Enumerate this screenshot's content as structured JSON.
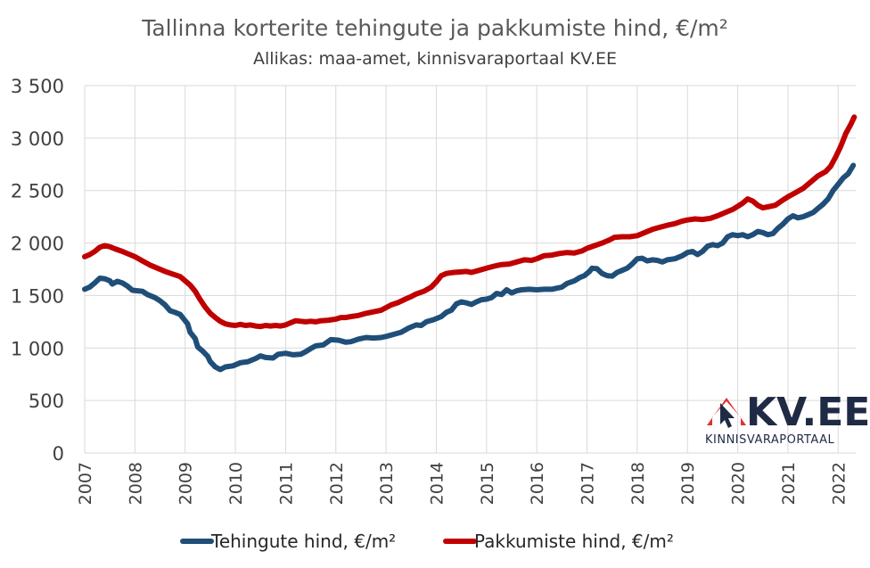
{
  "chart_data": {
    "type": "line",
    "title": "Tallinna korterite tehingute ja pakkumiste hind, €/m²",
    "subtitle": "Allikas: maa-amet, kinnisvaraportaal KV.EE",
    "ylim": [
      0,
      3500
    ],
    "yticks": [
      0,
      500,
      1000,
      1500,
      2000,
      2500,
      3000,
      3500
    ],
    "ytick_labels": [
      "0",
      "500",
      "1 000",
      "1 500",
      "2 000",
      "2 500",
      "3 000",
      "3 500"
    ],
    "xlim": [
      2007,
      2022.35
    ],
    "xticks": [
      2007,
      2008,
      2009,
      2010,
      2011,
      2012,
      2013,
      2014,
      2015,
      2016,
      2017,
      2018,
      2019,
      2020,
      2021,
      2022
    ],
    "xtick_labels": [
      "2007",
      "2008",
      "2009",
      "2010",
      "2011",
      "2012",
      "2013",
      "2014",
      "2015",
      "2016",
      "2017",
      "2018",
      "2019",
      "2020",
      "2021",
      "2022"
    ],
    "grid": true,
    "legend_position": "bottom",
    "series": [
      {
        "name": "Tehingute hind, €/m²",
        "color": "#1f4e79",
        "points": [
          [
            2007.0,
            1560
          ],
          [
            2007.1,
            1580
          ],
          [
            2007.2,
            1620
          ],
          [
            2007.3,
            1665
          ],
          [
            2007.4,
            1660
          ],
          [
            2007.5,
            1640
          ],
          [
            2007.55,
            1610
          ],
          [
            2007.65,
            1635
          ],
          [
            2007.75,
            1620
          ],
          [
            2007.85,
            1590
          ],
          [
            2007.95,
            1550
          ],
          [
            2008.05,
            1545
          ],
          [
            2008.15,
            1540
          ],
          [
            2008.25,
            1510
          ],
          [
            2008.4,
            1480
          ],
          [
            2008.5,
            1450
          ],
          [
            2008.6,
            1410
          ],
          [
            2008.7,
            1355
          ],
          [
            2008.8,
            1340
          ],
          [
            2008.9,
            1320
          ],
          [
            2009.0,
            1260
          ],
          [
            2009.05,
            1230
          ],
          [
            2009.1,
            1150
          ],
          [
            2009.2,
            1090
          ],
          [
            2009.25,
            1010
          ],
          [
            2009.35,
            970
          ],
          [
            2009.45,
            920
          ],
          [
            2009.5,
            870
          ],
          [
            2009.6,
            820
          ],
          [
            2009.7,
            795
          ],
          [
            2009.8,
            820
          ],
          [
            2009.95,
            830
          ],
          [
            2010.1,
            860
          ],
          [
            2010.25,
            870
          ],
          [
            2010.4,
            900
          ],
          [
            2010.5,
            925
          ],
          [
            2010.6,
            910
          ],
          [
            2010.75,
            905
          ],
          [
            2010.85,
            940
          ],
          [
            2011.0,
            950
          ],
          [
            2011.15,
            935
          ],
          [
            2011.3,
            940
          ],
          [
            2011.4,
            965
          ],
          [
            2011.5,
            995
          ],
          [
            2011.6,
            1020
          ],
          [
            2011.75,
            1030
          ],
          [
            2011.9,
            1080
          ],
          [
            2012.05,
            1075
          ],
          [
            2012.2,
            1055
          ],
          [
            2012.3,
            1060
          ],
          [
            2012.45,
            1085
          ],
          [
            2012.6,
            1100
          ],
          [
            2012.75,
            1095
          ],
          [
            2012.9,
            1100
          ],
          [
            2013.0,
            1110
          ],
          [
            2013.15,
            1130
          ],
          [
            2013.3,
            1150
          ],
          [
            2013.45,
            1190
          ],
          [
            2013.6,
            1220
          ],
          [
            2013.7,
            1215
          ],
          [
            2013.8,
            1250
          ],
          [
            2013.95,
            1270
          ],
          [
            2014.1,
            1300
          ],
          [
            2014.2,
            1340
          ],
          [
            2014.3,
            1360
          ],
          [
            2014.4,
            1420
          ],
          [
            2014.5,
            1440
          ],
          [
            2014.6,
            1430
          ],
          [
            2014.7,
            1415
          ],
          [
            2014.8,
            1440
          ],
          [
            2014.9,
            1460
          ],
          [
            2015.0,
            1465
          ],
          [
            2015.1,
            1480
          ],
          [
            2015.2,
            1520
          ],
          [
            2015.3,
            1510
          ],
          [
            2015.4,
            1555
          ],
          [
            2015.5,
            1525
          ],
          [
            2015.6,
            1545
          ],
          [
            2015.7,
            1555
          ],
          [
            2015.85,
            1560
          ],
          [
            2016.0,
            1555
          ],
          [
            2016.15,
            1560
          ],
          [
            2016.3,
            1560
          ],
          [
            2016.4,
            1570
          ],
          [
            2016.5,
            1580
          ],
          [
            2016.6,
            1615
          ],
          [
            2016.75,
            1640
          ],
          [
            2016.85,
            1670
          ],
          [
            2016.95,
            1690
          ],
          [
            2017.05,
            1730
          ],
          [
            2017.1,
            1760
          ],
          [
            2017.2,
            1755
          ],
          [
            2017.3,
            1710
          ],
          [
            2017.4,
            1690
          ],
          [
            2017.5,
            1685
          ],
          [
            2017.6,
            1720
          ],
          [
            2017.7,
            1740
          ],
          [
            2017.8,
            1760
          ],
          [
            2017.9,
            1800
          ],
          [
            2018.0,
            1850
          ],
          [
            2018.1,
            1855
          ],
          [
            2018.2,
            1830
          ],
          [
            2018.3,
            1840
          ],
          [
            2018.4,
            1835
          ],
          [
            2018.5,
            1820
          ],
          [
            2018.6,
            1840
          ],
          [
            2018.75,
            1850
          ],
          [
            2018.9,
            1880
          ],
          [
            2019.0,
            1910
          ],
          [
            2019.1,
            1920
          ],
          [
            2019.2,
            1890
          ],
          [
            2019.3,
            1920
          ],
          [
            2019.4,
            1970
          ],
          [
            2019.5,
            1985
          ],
          [
            2019.6,
            1975
          ],
          [
            2019.7,
            2000
          ],
          [
            2019.8,
            2060
          ],
          [
            2019.9,
            2080
          ],
          [
            2020.0,
            2070
          ],
          [
            2020.1,
            2080
          ],
          [
            2020.2,
            2060
          ],
          [
            2020.3,
            2080
          ],
          [
            2020.4,
            2110
          ],
          [
            2020.5,
            2100
          ],
          [
            2020.6,
            2080
          ],
          [
            2020.7,
            2090
          ],
          [
            2020.8,
            2140
          ],
          [
            2020.9,
            2180
          ],
          [
            2021.0,
            2230
          ],
          [
            2021.1,
            2260
          ],
          [
            2021.2,
            2240
          ],
          [
            2021.3,
            2250
          ],
          [
            2021.4,
            2270
          ],
          [
            2021.5,
            2290
          ],
          [
            2021.6,
            2330
          ],
          [
            2021.7,
            2370
          ],
          [
            2021.8,
            2420
          ],
          [
            2021.9,
            2500
          ],
          [
            2022.0,
            2560
          ],
          [
            2022.1,
            2620
          ],
          [
            2022.2,
            2660
          ],
          [
            2022.3,
            2740
          ]
        ]
      },
      {
        "name": "Pakkumiste hind, €/m²",
        "color": "#c00000",
        "points": [
          [
            2007.0,
            1870
          ],
          [
            2007.1,
            1890
          ],
          [
            2007.2,
            1920
          ],
          [
            2007.3,
            1960
          ],
          [
            2007.4,
            1975
          ],
          [
            2007.5,
            1965
          ],
          [
            2007.6,
            1945
          ],
          [
            2007.75,
            1920
          ],
          [
            2007.9,
            1890
          ],
          [
            2008.0,
            1870
          ],
          [
            2008.15,
            1830
          ],
          [
            2008.3,
            1790
          ],
          [
            2008.45,
            1760
          ],
          [
            2008.6,
            1730
          ],
          [
            2008.75,
            1705
          ],
          [
            2008.9,
            1680
          ],
          [
            2009.0,
            1640
          ],
          [
            2009.1,
            1600
          ],
          [
            2009.2,
            1540
          ],
          [
            2009.3,
            1460
          ],
          [
            2009.4,
            1390
          ],
          [
            2009.5,
            1330
          ],
          [
            2009.6,
            1290
          ],
          [
            2009.7,
            1255
          ],
          [
            2009.8,
            1230
          ],
          [
            2009.9,
            1220
          ],
          [
            2010.0,
            1215
          ],
          [
            2010.1,
            1225
          ],
          [
            2010.2,
            1215
          ],
          [
            2010.3,
            1220
          ],
          [
            2010.4,
            1210
          ],
          [
            2010.5,
            1205
          ],
          [
            2010.6,
            1215
          ],
          [
            2010.7,
            1210
          ],
          [
            2010.8,
            1215
          ],
          [
            2010.9,
            1210
          ],
          [
            2011.0,
            1220
          ],
          [
            2011.1,
            1240
          ],
          [
            2011.2,
            1260
          ],
          [
            2011.3,
            1255
          ],
          [
            2011.4,
            1250
          ],
          [
            2011.5,
            1255
          ],
          [
            2011.6,
            1250
          ],
          [
            2011.7,
            1260
          ],
          [
            2011.85,
            1265
          ],
          [
            2012.0,
            1275
          ],
          [
            2012.1,
            1290
          ],
          [
            2012.2,
            1290
          ],
          [
            2012.3,
            1300
          ],
          [
            2012.45,
            1310
          ],
          [
            2012.6,
            1330
          ],
          [
            2012.75,
            1345
          ],
          [
            2012.9,
            1360
          ],
          [
            2013.0,
            1385
          ],
          [
            2013.1,
            1410
          ],
          [
            2013.25,
            1435
          ],
          [
            2013.4,
            1470
          ],
          [
            2013.5,
            1490
          ],
          [
            2013.6,
            1515
          ],
          [
            2013.75,
            1540
          ],
          [
            2013.9,
            1580
          ],
          [
            2014.0,
            1630
          ],
          [
            2014.1,
            1690
          ],
          [
            2014.2,
            1710
          ],
          [
            2014.35,
            1720
          ],
          [
            2014.5,
            1725
          ],
          [
            2014.6,
            1730
          ],
          [
            2014.7,
            1720
          ],
          [
            2014.85,
            1740
          ],
          [
            2015.0,
            1760
          ],
          [
            2015.15,
            1780
          ],
          [
            2015.3,
            1795
          ],
          [
            2015.45,
            1800
          ],
          [
            2015.6,
            1820
          ],
          [
            2015.75,
            1840
          ],
          [
            2015.9,
            1835
          ],
          [
            2016.0,
            1850
          ],
          [
            2016.15,
            1880
          ],
          [
            2016.3,
            1885
          ],
          [
            2016.45,
            1900
          ],
          [
            2016.6,
            1910
          ],
          [
            2016.75,
            1905
          ],
          [
            2016.9,
            1925
          ],
          [
            2017.0,
            1950
          ],
          [
            2017.15,
            1975
          ],
          [
            2017.3,
            2000
          ],
          [
            2017.45,
            2030
          ],
          [
            2017.55,
            2055
          ],
          [
            2017.7,
            2060
          ],
          [
            2017.85,
            2060
          ],
          [
            2018.0,
            2070
          ],
          [
            2018.15,
            2100
          ],
          [
            2018.3,
            2130
          ],
          [
            2018.45,
            2150
          ],
          [
            2018.6,
            2170
          ],
          [
            2018.75,
            2185
          ],
          [
            2018.9,
            2210
          ],
          [
            2019.0,
            2220
          ],
          [
            2019.15,
            2230
          ],
          [
            2019.3,
            2225
          ],
          [
            2019.45,
            2235
          ],
          [
            2019.6,
            2260
          ],
          [
            2019.75,
            2290
          ],
          [
            2019.9,
            2320
          ],
          [
            2020.0,
            2350
          ],
          [
            2020.1,
            2380
          ],
          [
            2020.2,
            2420
          ],
          [
            2020.3,
            2400
          ],
          [
            2020.4,
            2360
          ],
          [
            2020.5,
            2335
          ],
          [
            2020.6,
            2345
          ],
          [
            2020.75,
            2360
          ],
          [
            2020.9,
            2410
          ],
          [
            2021.0,
            2440
          ],
          [
            2021.15,
            2480
          ],
          [
            2021.3,
            2520
          ],
          [
            2021.45,
            2580
          ],
          [
            2021.6,
            2640
          ],
          [
            2021.75,
            2680
          ],
          [
            2021.85,
            2730
          ],
          [
            2021.95,
            2820
          ],
          [
            2022.05,
            2920
          ],
          [
            2022.15,
            3040
          ],
          [
            2022.25,
            3130
          ],
          [
            2022.32,
            3200
          ]
        ]
      }
    ]
  },
  "logo": {
    "text": "KV.EE",
    "subtext": "KINNISVARAPORTAAL",
    "color": "#1f2a44",
    "accent": "#e03030"
  }
}
